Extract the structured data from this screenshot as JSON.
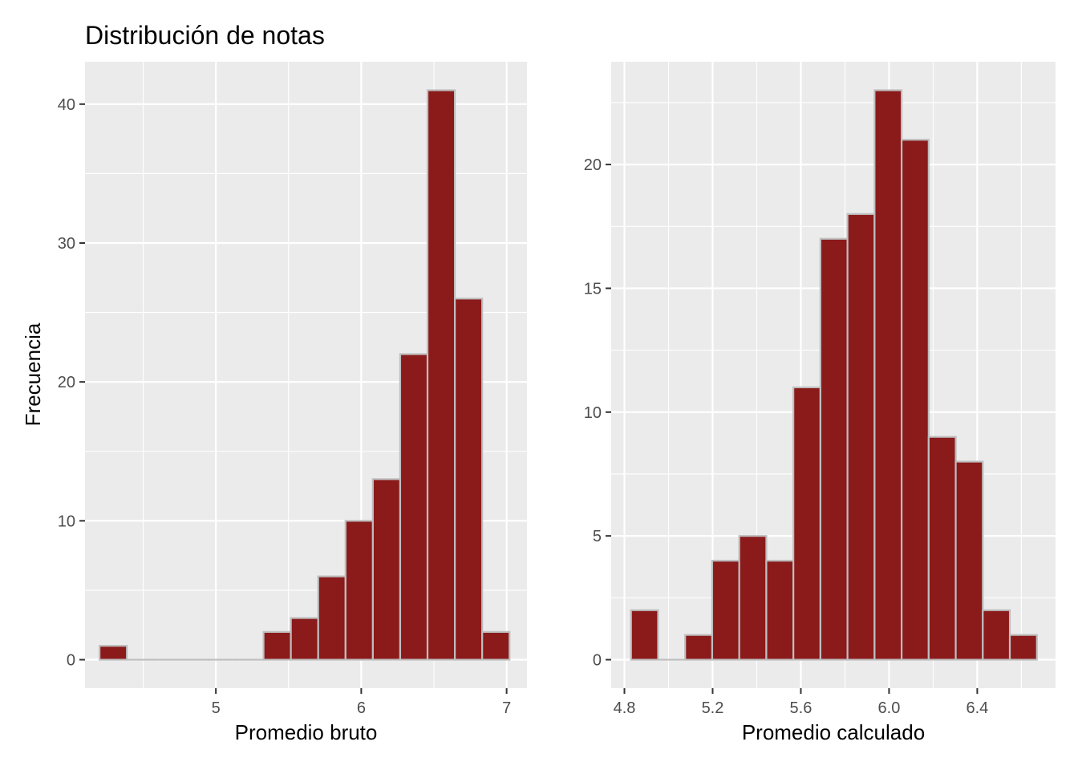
{
  "title": "Distribución de notas",
  "ylabel": "Frecuencia",
  "colors": {
    "panel_bg": "#ebebeb",
    "grid": "#ffffff",
    "bar_fill": "#8b1a1a",
    "bar_outline": "#bebebe",
    "tick_text": "#4d4d4d"
  },
  "chart_data": [
    {
      "type": "bar",
      "name": "",
      "xlabel": "Promedio bruto",
      "ylabel": "Frecuencia",
      "xlim": [
        4.1,
        7.14
      ],
      "ylim": [
        -2.05,
        43.05
      ],
      "xticks": [
        5,
        6,
        7
      ],
      "xtick_labels": [
        "5",
        "6",
        "7"
      ],
      "yticks": [
        0,
        10,
        20,
        30,
        40
      ],
      "ytick_labels": [
        "0",
        "10",
        "20",
        "30",
        "40"
      ],
      "grid": true,
      "bin_width": 0.188,
      "bin_starts": [
        4.2,
        4.388,
        4.576,
        4.764,
        4.952,
        5.14,
        5.328,
        5.516,
        5.704,
        5.892,
        6.08,
        6.268,
        6.456,
        6.644,
        6.832
      ],
      "values": [
        1,
        0,
        0,
        0,
        0,
        0,
        2,
        3,
        6,
        10,
        13,
        22,
        41,
        26,
        2
      ]
    },
    {
      "type": "bar",
      "name": "",
      "xlabel": "Promedio calculado",
      "ylabel": "",
      "xlim": [
        4.74,
        6.755
      ],
      "ylim": [
        -1.15,
        24.15
      ],
      "xticks": [
        4.8,
        5.2,
        5.6,
        6.0,
        6.4
      ],
      "xtick_labels": [
        "4.8",
        "5.2",
        "5.6",
        "6.0",
        "6.4"
      ],
      "yticks": [
        0,
        5,
        10,
        15,
        20
      ],
      "ytick_labels": [
        "0",
        "5",
        "10",
        "15",
        "20"
      ],
      "grid": true,
      "bin_width": 0.1227,
      "bin_starts": [
        4.83,
        4.9527,
        5.0754,
        5.1981,
        5.3208,
        5.4435,
        5.5662,
        5.6889,
        5.8116,
        5.9343,
        6.057,
        6.1797,
        6.3024,
        6.4251,
        6.5478
      ],
      "values": [
        2,
        0,
        1,
        4,
        5,
        4,
        11,
        17,
        18,
        23,
        21,
        9,
        8,
        2,
        1
      ]
    }
  ]
}
